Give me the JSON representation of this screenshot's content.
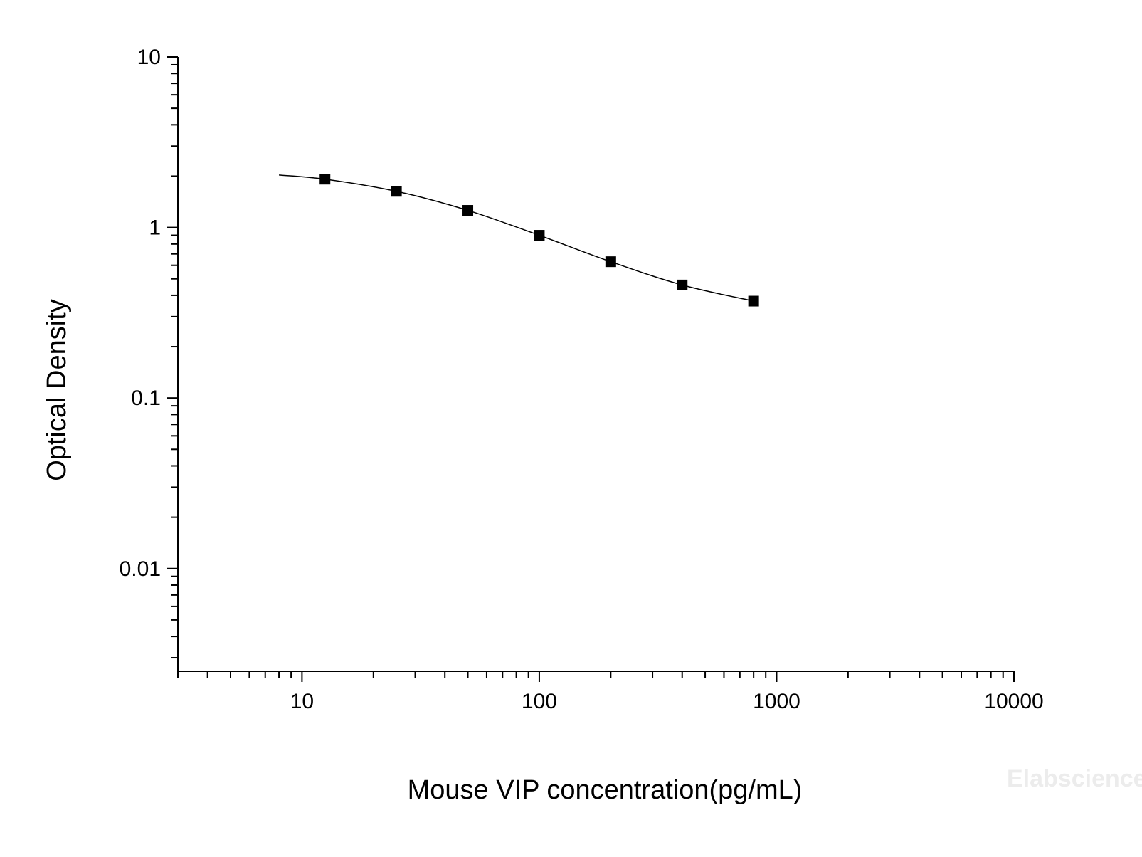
{
  "chart_data": {
    "type": "scatter",
    "xlabel": "Mouse VIP concentration(pg/mL)",
    "ylabel": "Optical Density",
    "x_scale": "log",
    "y_scale": "log",
    "xlim": [
      3,
      10000
    ],
    "ylim": [
      0.0025,
      10
    ],
    "x_ticks": [
      {
        "value": 10,
        "label": "10"
      },
      {
        "value": 100,
        "label": "100"
      },
      {
        "value": 1000,
        "label": "1000"
      },
      {
        "value": 10000,
        "label": "10000"
      }
    ],
    "y_ticks": [
      {
        "value": 10,
        "label": "10"
      },
      {
        "value": 1,
        "label": "1"
      },
      {
        "value": 0.1,
        "label": "0.1"
      },
      {
        "value": 0.01,
        "label": "0.01"
      }
    ],
    "series": [
      {
        "marker": "square",
        "color": "#000000",
        "x": [
          12.5,
          25,
          50,
          100,
          200,
          400,
          800
        ],
        "y": [
          1.92,
          1.63,
          1.26,
          0.9,
          0.63,
          0.46,
          0.37
        ]
      }
    ],
    "fit_curve": {
      "color": "#000000",
      "x": [
        8,
        12.5,
        25,
        50,
        100,
        200,
        400,
        800
      ],
      "y": [
        2.03,
        1.92,
        1.63,
        1.26,
        0.9,
        0.63,
        0.46,
        0.37
      ]
    },
    "grid": false,
    "legend": "none"
  },
  "watermark": "Elabscience"
}
